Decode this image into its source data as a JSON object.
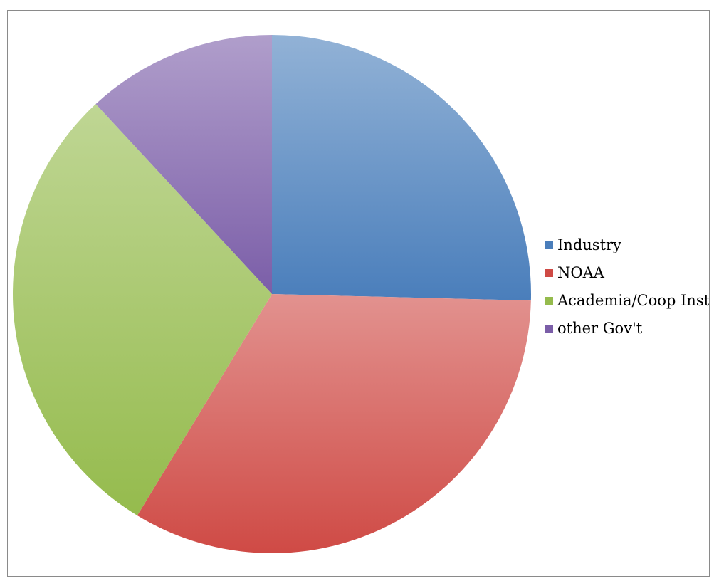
{
  "chart_data": {
    "type": "pie",
    "title": "",
    "categories": [
      "Industry",
      "NOAA",
      "Academia/Coop Inst.",
      "other Gov't"
    ],
    "values": [
      25.4,
      33.3,
      29.4,
      11.9
    ],
    "colors": [
      "#4a7ebb",
      "#cf4a45",
      "#95bb4d",
      "#7b5ea8"
    ],
    "start_angle": "12 o'clock",
    "direction": "clockwise",
    "legend": {
      "position": "right",
      "entries": [
        "Industry",
        "NOAA",
        "Academia/Coop Inst.",
        "other Gov't"
      ]
    }
  }
}
